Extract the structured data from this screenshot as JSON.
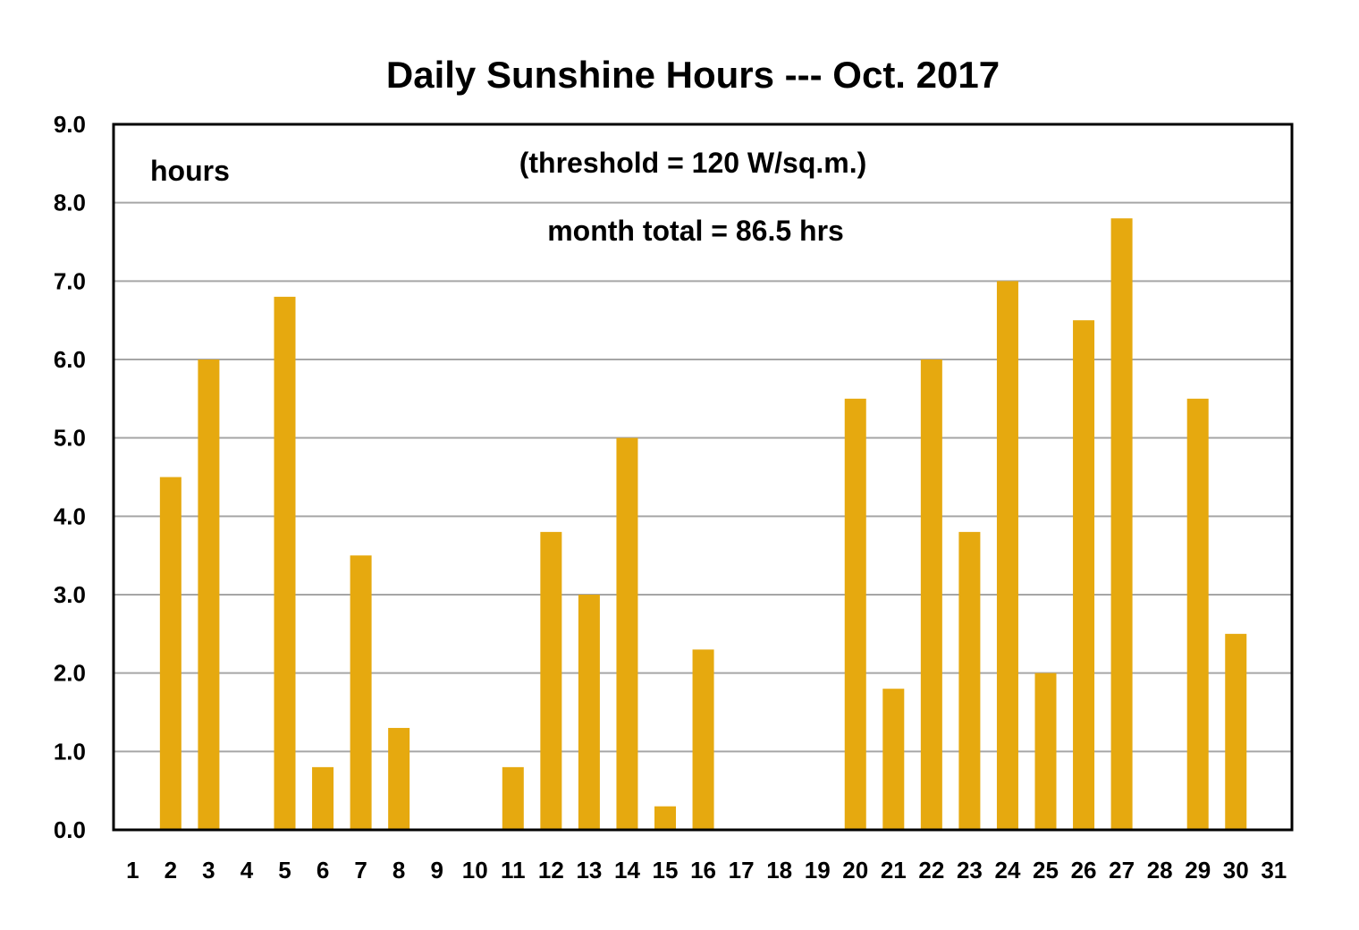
{
  "chart_data": {
    "type": "bar",
    "title": "Daily Sunshine Hours --- Oct. 2017",
    "ylabel": "hours",
    "xlabel": "",
    "annotations": [
      "(threshold = 120 W/sq.m.)",
      "month total = 86.5 hrs"
    ],
    "ylim": [
      0,
      9
    ],
    "y_ticks": [
      "0.0",
      "1.0",
      "2.0",
      "3.0",
      "4.0",
      "5.0",
      "6.0",
      "7.0",
      "8.0",
      "9.0"
    ],
    "grid": true,
    "bar_color": "#E6A90F",
    "categories": [
      "1",
      "2",
      "3",
      "4",
      "5",
      "6",
      "7",
      "8",
      "9",
      "10",
      "11",
      "12",
      "13",
      "14",
      "15",
      "16",
      "17",
      "18",
      "19",
      "20",
      "21",
      "22",
      "23",
      "24",
      "25",
      "26",
      "27",
      "28",
      "29",
      "30",
      "31"
    ],
    "values": [
      0,
      4.5,
      6.0,
      0,
      6.8,
      0.8,
      3.5,
      1.3,
      0,
      0,
      0.8,
      3.8,
      3.0,
      5.0,
      0.3,
      2.3,
      0,
      0,
      0,
      5.5,
      1.8,
      6.0,
      3.8,
      7.0,
      2.0,
      6.5,
      7.8,
      0,
      5.5,
      2.5,
      0
    ]
  }
}
